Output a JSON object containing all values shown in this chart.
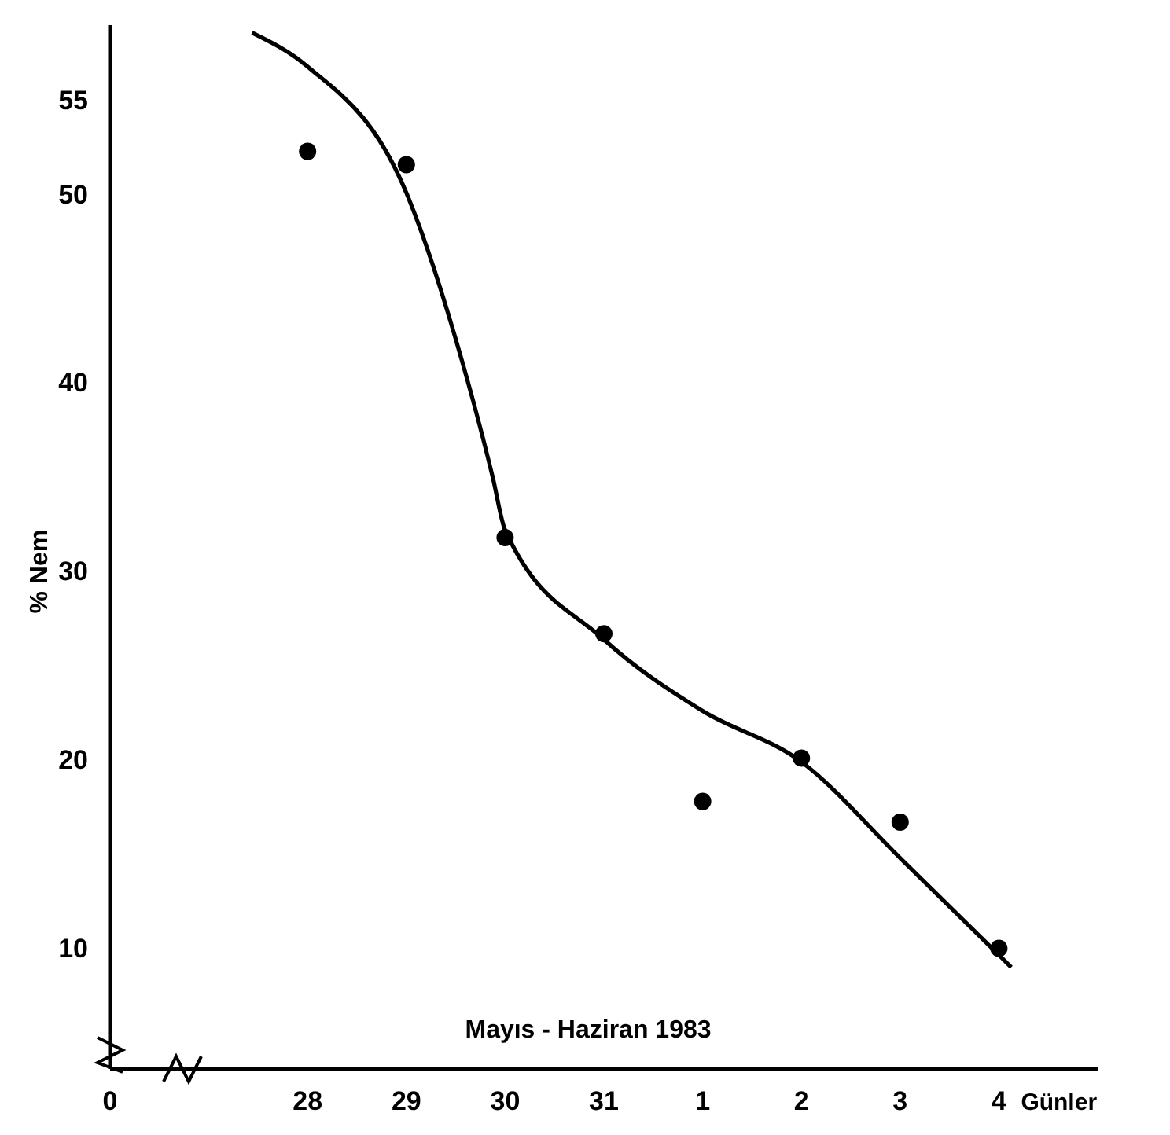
{
  "chart_data": {
    "type": "scatter",
    "ylabel": "% Nem",
    "xlabel": "Günler",
    "annotations": [
      "Mayıs - Haziran 1983"
    ],
    "xlim": [
      "1983-05-26",
      "1983-06-05"
    ],
    "ylim": [
      3.6,
      59
    ],
    "xticks": [
      {
        "value": "1983-05-26",
        "label": "0"
      },
      {
        "value": "1983-05-28",
        "label": "28"
      },
      {
        "value": "1983-05-29",
        "label": "29"
      },
      {
        "value": "1983-05-30",
        "label": "30"
      },
      {
        "value": "1983-05-31",
        "label": "31"
      },
      {
        "value": "1983-06-01",
        "label": "1"
      },
      {
        "value": "1983-06-02",
        "label": "2"
      },
      {
        "value": "1983-06-03",
        "label": "3"
      },
      {
        "value": "1983-06-04",
        "label": "4"
      }
    ],
    "yticks": [
      10,
      20,
      30,
      40,
      50,
      55
    ],
    "grid": false,
    "series": [
      {
        "marker": "circle",
        "color": "#000000",
        "x": [
          "1983-05-28",
          "1983-05-29",
          "1983-05-30",
          "1983-05-31",
          "1983-06-01",
          "1983-06-02",
          "1983-06-03",
          "1983-06-04"
        ],
        "values": [
          52.3,
          51.6,
          31.8,
          26.7,
          17.8,
          20.1,
          16.7,
          10.0
        ]
      },
      {
        "type": "line",
        "marker": "none",
        "line_style": "solid",
        "color": "#000000",
        "x": [
          "1983-05-27T10:30",
          "1983-05-28",
          "1983-05-29",
          "1983-05-29T13:30",
          "1983-05-29T21:00",
          "1983-05-30",
          "1983-05-31",
          "1983-06-01",
          "1983-06-02",
          "1983-06-03",
          "1983-06-04T03:00"
        ],
        "values": [
          58.6,
          56.8,
          50.1,
          41.2,
          35.0,
          32.2,
          26.4,
          22.6,
          19.9,
          14.8,
          9.0
        ]
      }
    ]
  }
}
